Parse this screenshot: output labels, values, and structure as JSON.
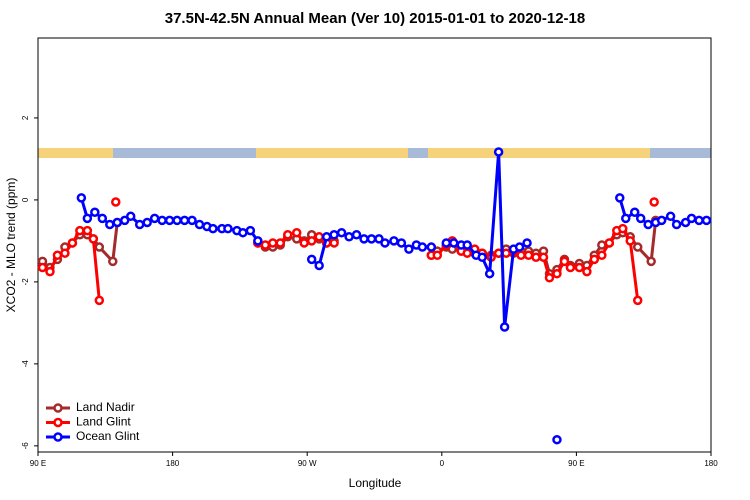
{
  "chart_data": {
    "type": "line",
    "title": "37.5N-42.5N Annual Mean (Ver 10)   2015-01-01 to 2020-12-18",
    "xlabel": "Longitude",
    "ylabel": "XCO2 - MLO trend (ppm)",
    "xlim": [
      90,
      540
    ],
    "ylim": [
      -6.15,
      3.95
    ],
    "xticks": [
      {
        "value": 90,
        "label": "90 E"
      },
      180,
      {
        "value": 270,
        "label": "90 W"
      },
      {
        "value": 360,
        "label": "0"
      },
      {
        "value": 450,
        "label": "90 E"
      },
      {
        "value": 540,
        "label": "180"
      }
    ],
    "yticks": [
      -6,
      -4,
      -2,
      0,
      2
    ],
    "legend": "bottom-left",
    "series": [
      {
        "name": "Land Nadir",
        "color": "#a52a2a",
        "x": [
          93,
          98,
          103,
          108,
          113,
          118,
          123,
          127,
          131,
          140,
          143,
          190,
          237,
          242,
          247,
          252,
          257,
          263,
          268,
          273,
          278,
          283,
          288,
          320,
          353,
          357,
          363,
          367,
          373,
          377,
          382,
          387,
          393,
          398,
          403,
          408,
          413,
          418,
          423,
          428,
          432,
          437,
          442,
          446,
          452,
          457,
          462,
          467,
          472,
          477,
          481,
          486,
          491,
          500,
          503
        ],
        "values": [
          -1.5,
          -1.65,
          -1.45,
          -1.15,
          -1.05,
          -0.85,
          -0.85,
          -0.95,
          -1.15,
          -1.5,
          -0.55,
          null,
          -1.05,
          -1.15,
          -1.15,
          -1.1,
          -0.9,
          -0.95,
          -1.0,
          -0.85,
          -0.95,
          -1.05,
          -1.0,
          null,
          -1.35,
          -1.25,
          -1.15,
          -1.2,
          -1.25,
          -1.2,
          -1.3,
          -1.3,
          -1.35,
          -1.3,
          -1.2,
          -1.3,
          -1.25,
          -1.25,
          -1.3,
          -1.25,
          -1.8,
          -1.7,
          -1.45,
          -1.6,
          -1.55,
          -1.6,
          -1.35,
          -1.1,
          -1.05,
          -0.85,
          -0.8,
          -0.9,
          -1.15,
          -1.5,
          -0.5
        ]
      },
      {
        "name": "Land Glint",
        "color": "#ff0000",
        "x": [
          93,
          98,
          103,
          108,
          113,
          118,
          123,
          127,
          131,
          136,
          142,
          190,
          237,
          242,
          247,
          252,
          257,
          263,
          268,
          273,
          278,
          283,
          288,
          320,
          353,
          357,
          363,
          367,
          373,
          377,
          382,
          387,
          393,
          398,
          403,
          408,
          413,
          418,
          423,
          428,
          432,
          437,
          442,
          446,
          452,
          457,
          462,
          467,
          472,
          477,
          481,
          486,
          491,
          496,
          502
        ],
        "values": [
          -1.65,
          -1.75,
          -1.35,
          -1.3,
          -1.05,
          -0.75,
          -0.75,
          -0.95,
          -2.45,
          null,
          -0.05,
          null,
          -1.05,
          -1.1,
          -1.05,
          -1.05,
          -0.85,
          -0.8,
          -1.05,
          -1.0,
          -0.9,
          -1.05,
          -1.05,
          null,
          -1.35,
          -1.35,
          -1.1,
          -1.0,
          -1.25,
          -1.3,
          -1.2,
          -1.3,
          -1.4,
          -1.3,
          -1.3,
          -1.25,
          -1.35,
          -1.35,
          -1.4,
          -1.4,
          -1.9,
          -1.8,
          -1.5,
          -1.65,
          -1.65,
          -1.75,
          -1.45,
          -1.35,
          -1.05,
          -0.75,
          -0.7,
          -1.0,
          -2.45,
          null,
          -0.05
        ]
      },
      {
        "name": "Ocean Glint",
        "color": "#0000ff",
        "x": [
          119,
          123,
          128,
          133,
          138,
          143,
          148,
          152,
          158,
          163,
          168,
          173,
          178,
          183,
          188,
          193,
          198,
          203,
          207,
          213,
          217,
          223,
          227,
          232,
          237,
          255,
          273,
          278,
          283,
          288,
          293,
          298,
          303,
          308,
          313,
          318,
          322,
          328,
          333,
          338,
          343,
          347,
          353,
          358,
          363,
          368,
          373,
          377,
          383,
          387,
          392,
          398,
          402,
          408,
          412,
          417,
          427,
          437,
          458,
          479,
          483,
          489,
          493,
          498,
          503,
          507,
          513,
          517,
          523,
          527,
          532,
          537
        ],
        "values": [
          0.05,
          -0.45,
          -0.3,
          -0.45,
          -0.6,
          -0.55,
          -0.5,
          -0.4,
          -0.6,
          -0.55,
          -0.45,
          -0.5,
          -0.5,
          -0.5,
          -0.5,
          -0.5,
          -0.6,
          -0.65,
          -0.7,
          -0.7,
          -0.7,
          -0.75,
          -0.8,
          -0.75,
          -1.0,
          null,
          -1.45,
          -1.6,
          -0.9,
          -0.85,
          -0.8,
          -0.9,
          -0.85,
          -0.95,
          -0.95,
          -0.95,
          -1.05,
          -1.0,
          -1.05,
          -1.2,
          -1.1,
          -1.15,
          -1.15,
          null,
          -1.05,
          -1.05,
          -1.1,
          -1.1,
          -1.35,
          -1.4,
          -1.8,
          1.17,
          -3.1,
          -1.2,
          -1.15,
          -1.05,
          null,
          -5.85,
          null,
          0.05,
          -0.45,
          -0.3,
          -0.45,
          -0.6,
          -0.55,
          -0.5,
          -0.4,
          -0.6,
          -0.55,
          -0.45,
          -0.5,
          -0.5
        ]
      }
    ]
  }
}
